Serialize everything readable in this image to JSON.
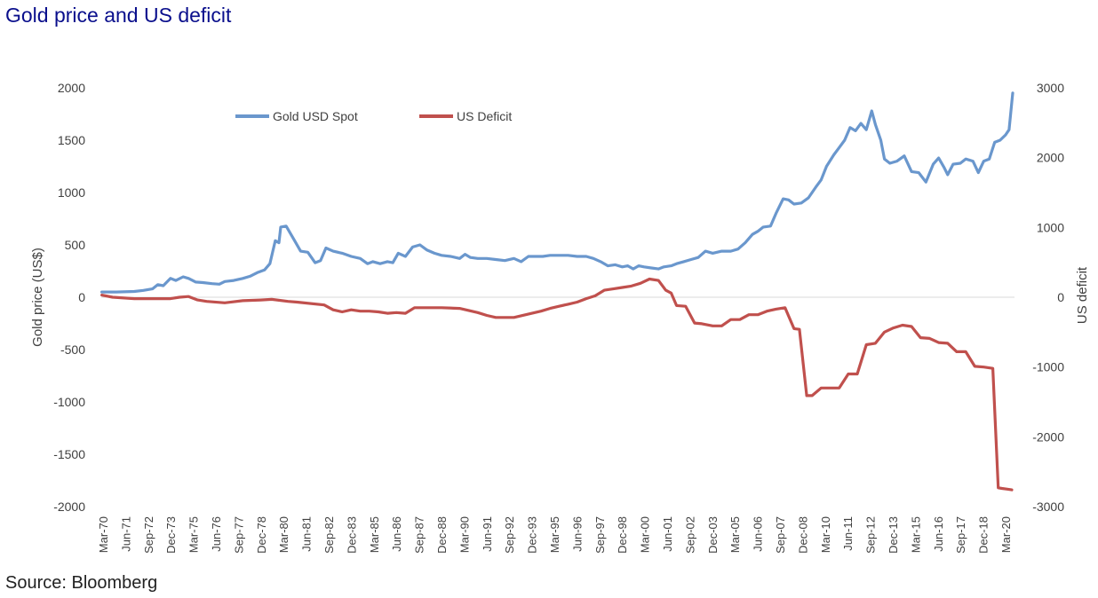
{
  "page": {
    "title": "Gold price and US deficit",
    "source": "Source: Bloomberg"
  },
  "chart_data": {
    "type": "line",
    "title": "Gold price and US deficit",
    "xlabel": "",
    "ylabel": "Gold price (US$)",
    "y2label": "US deficit",
    "ylim": [
      -2000,
      2000
    ],
    "y_ticks": [
      2000,
      1500,
      1000,
      500,
      0,
      -500,
      -1000,
      -1500,
      -2000
    ],
    "y2lim": [
      -3000,
      3000
    ],
    "y2_ticks": [
      3000,
      2000,
      1000,
      0,
      -1000,
      -2000,
      -3000
    ],
    "x_range": [
      1970.17,
      2020.6
    ],
    "x_tick_labels": [
      "Mar-70",
      "Jun-71",
      "Sep-72",
      "Dec-73",
      "Mar-75",
      "Jun-76",
      "Sep-77",
      "Dec-78",
      "Mar-80",
      "Jun-81",
      "Sep-82",
      "Dec-83",
      "Mar-85",
      "Jun-86",
      "Sep-87",
      "Dec-88",
      "Mar-90",
      "Jun-91",
      "Sep-92",
      "Dec-93",
      "Mar-95",
      "Jun-96",
      "Sep-97",
      "Dec-98",
      "Mar-00",
      "Jun-01",
      "Sep-02",
      "Dec-03",
      "Mar-05",
      "Jun-06",
      "Sep-07",
      "Dec-08",
      "Mar-10",
      "Jun-11",
      "Sep-12",
      "Dec-13",
      "Mar-15",
      "Jun-16",
      "Sep-17",
      "Dec-18",
      "Mar-20"
    ],
    "legend_position": "top-left",
    "series": [
      {
        "name": "Gold USD Spot",
        "axis": "left",
        "color": "#6a97cd",
        "x": [
          1970.2,
          1971.0,
          1972.0,
          1972.5,
          1973.0,
          1973.3,
          1973.6,
          1974.0,
          1974.3,
          1974.7,
          1975.0,
          1975.4,
          1975.8,
          1976.3,
          1976.7,
          1977.0,
          1977.5,
          1978.0,
          1978.4,
          1978.8,
          1979.2,
          1979.5,
          1979.8,
          1980.0,
          1980.1,
          1980.4,
          1980.8,
          1981.2,
          1981.6,
          1982.0,
          1982.3,
          1982.6,
          1983.0,
          1983.5,
          1984.0,
          1984.5,
          1984.9,
          1985.2,
          1985.6,
          1986.0,
          1986.3,
          1986.6,
          1987.0,
          1987.4,
          1987.8,
          1988.2,
          1988.6,
          1989.0,
          1989.5,
          1990.0,
          1990.3,
          1990.6,
          1991.0,
          1991.5,
          1992.0,
          1992.5,
          1993.0,
          1993.4,
          1993.8,
          1994.2,
          1994.6,
          1995.0,
          1995.5,
          1996.0,
          1996.5,
          1997.0,
          1997.4,
          1997.8,
          1998.2,
          1998.6,
          1999.0,
          1999.3,
          1999.6,
          1999.9,
          2000.2,
          2000.6,
          2001.0,
          2001.3,
          2001.7,
          2002.0,
          2002.4,
          2002.8,
          2003.2,
          2003.6,
          2004.0,
          2004.5,
          2005.0,
          2005.4,
          2005.8,
          2006.2,
          2006.5,
          2006.8,
          2007.2,
          2007.5,
          2007.9,
          2008.2,
          2008.5,
          2008.9,
          2009.3,
          2009.7,
          2010.0,
          2010.3,
          2010.7,
          2011.0,
          2011.3,
          2011.6,
          2011.9,
          2012.2,
          2012.5,
          2012.8,
          2013.0,
          2013.3,
          2013.5,
          2013.8,
          2014.2,
          2014.6,
          2015.0,
          2015.4,
          2015.8,
          2016.2,
          2016.5,
          2016.8,
          2017.0,
          2017.3,
          2017.7,
          2018.0,
          2018.4,
          2018.7,
          2019.0,
          2019.3,
          2019.6,
          2019.9,
          2020.2,
          2020.4,
          2020.6
        ],
        "values": [
          50,
          50,
          55,
          65,
          80,
          120,
          110,
          180,
          160,
          195,
          180,
          145,
          140,
          130,
          125,
          150,
          160,
          180,
          200,
          235,
          260,
          320,
          540,
          520,
          670,
          680,
          560,
          440,
          430,
          330,
          350,
          470,
          440,
          420,
          390,
          370,
          320,
          340,
          320,
          340,
          330,
          420,
          390,
          480,
          500,
          450,
          420,
          400,
          390,
          370,
          410,
          380,
          370,
          370,
          360,
          350,
          370,
          340,
          390,
          390,
          390,
          400,
          400,
          400,
          390,
          390,
          370,
          340,
          300,
          310,
          290,
          300,
          270,
          300,
          290,
          280,
          270,
          290,
          300,
          320,
          340,
          360,
          380,
          440,
          420,
          440,
          440,
          460,
          520,
          600,
          630,
          670,
          680,
          800,
          940,
          930,
          890,
          900,
          950,
          1050,
          1120,
          1250,
          1360,
          1430,
          1500,
          1620,
          1590,
          1660,
          1600,
          1780,
          1650,
          1500,
          1320,
          1280,
          1300,
          1350,
          1200,
          1190,
          1100,
          1270,
          1330,
          1240,
          1170,
          1270,
          1280,
          1320,
          1300,
          1190,
          1300,
          1320,
          1480,
          1500,
          1550,
          1600,
          1950
        ]
      },
      {
        "name": "US Deficit",
        "axis": "right",
        "color": "#c0504d",
        "x": [
          1970.2,
          1970.8,
          1972.0,
          1973.0,
          1974.0,
          1974.5,
          1975.0,
          1975.5,
          1976.0,
          1977.0,
          1978.0,
          1979.0,
          1979.6,
          1980.5,
          1981.0,
          1982.5,
          1983.0,
          1983.5,
          1984.0,
          1984.5,
          1985.0,
          1985.5,
          1986.0,
          1986.5,
          1987.0,
          1987.5,
          1988.0,
          1989.0,
          1990.0,
          1991.0,
          1991.5,
          1992.0,
          1993.0,
          1994.0,
          1994.5,
          1995.0,
          1995.5,
          1996.0,
          1996.5,
          1997.0,
          1997.5,
          1998.0,
          1998.5,
          1999.0,
          1999.5,
          2000.0,
          2000.5,
          2001.0,
          2001.4,
          2001.7,
          2002.0,
          2002.5,
          2003.0,
          2003.4,
          2004.0,
          2004.5,
          2005.0,
          2005.5,
          2006.0,
          2006.5,
          2007.0,
          2007.5,
          2008.0,
          2008.5,
          2008.8,
          2009.2,
          2009.5,
          2010.0,
          2010.5,
          2011.0,
          2011.5,
          2012.0,
          2012.5,
          2013.0,
          2013.5,
          2014.0,
          2014.5,
          2015.0,
          2015.5,
          2016.0,
          2016.5,
          2017.0,
          2017.5,
          2018.0,
          2018.5,
          2019.0,
          2019.5,
          2019.8,
          2020.0,
          2020.3,
          2020.55
        ],
        "values": [
          30,
          0,
          -20,
          -20,
          -20,
          0,
          10,
          -40,
          -60,
          -80,
          -50,
          -40,
          -30,
          -60,
          -70,
          -110,
          -180,
          -210,
          -180,
          -200,
          -200,
          -210,
          -230,
          -220,
          -230,
          -150,
          -150,
          -150,
          -160,
          -220,
          -260,
          -290,
          -290,
          -230,
          -200,
          -160,
          -130,
          -100,
          -70,
          -20,
          20,
          100,
          120,
          140,
          160,
          200,
          260,
          240,
          100,
          60,
          -120,
          -130,
          -370,
          -380,
          -410,
          -410,
          -320,
          -320,
          -250,
          -250,
          -200,
          -170,
          -150,
          -450,
          -460,
          -1410,
          -1410,
          -1300,
          -1300,
          -1300,
          -1100,
          -1100,
          -680,
          -660,
          -500,
          -440,
          -400,
          -420,
          -580,
          -590,
          -650,
          -660,
          -780,
          -780,
          -990,
          -1000,
          -1020,
          -2730,
          -2740,
          -2750,
          -2760
        ]
      }
    ]
  }
}
